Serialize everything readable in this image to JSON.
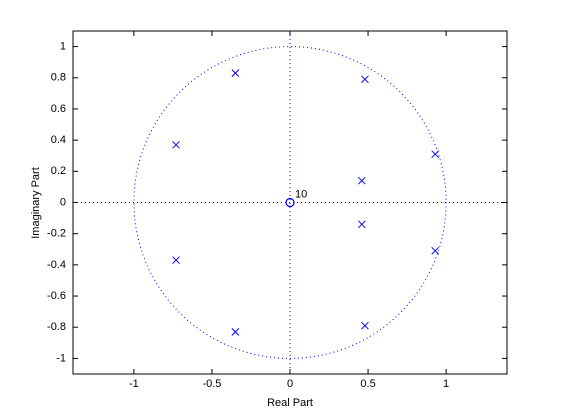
{
  "chart_data": {
    "type": "scatter",
    "xlabel": "Real Part",
    "ylabel": "Imaginary Part",
    "xlim": [
      -1.39,
      1.39
    ],
    "ylim": [
      -1.1,
      1.1
    ],
    "xticks": [
      -1,
      -0.5,
      0,
      0.5,
      1
    ],
    "yticks": [
      -1,
      -0.8,
      -0.6,
      -0.4,
      -0.2,
      0,
      0.2,
      0.4,
      0.6,
      0.8,
      1
    ],
    "unit_circle": true,
    "series": [
      {
        "marker": "x",
        "color": "#0000ff",
        "x": [
          -0.35,
          0.48,
          -0.73,
          0.93,
          0.46,
          0.46,
          0.93,
          -0.73,
          -0.35,
          0.48
        ],
        "y": [
          0.83,
          0.79,
          0.37,
          0.31,
          0.14,
          -0.14,
          -0.31,
          -0.37,
          -0.83,
          -0.79
        ]
      },
      {
        "marker": "o",
        "color": "#0000ff",
        "x": [
          0
        ],
        "y": [
          0
        ],
        "point_labels": [
          "10"
        ]
      }
    ]
  }
}
